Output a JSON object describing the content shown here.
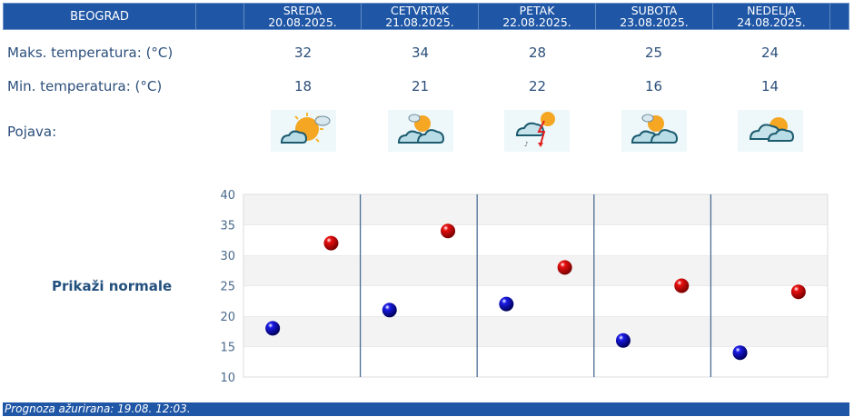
{
  "header": {
    "city": "BEOGRAD",
    "days": [
      {
        "name": "SREDA",
        "date": "20.08.2025."
      },
      {
        "name": "CETVRTAK",
        "date": "21.08.2025."
      },
      {
        "name": "PETAK",
        "date": "22.08.2025."
      },
      {
        "name": "SUBOTA",
        "date": "23.08.2025."
      },
      {
        "name": "NEDELJA",
        "date": "24.08.2025."
      }
    ]
  },
  "rows": {
    "max_label": "Maks. temperatura: (°C)",
    "min_label": "Min. temperatura: (°C)",
    "phenomena_label": "Pojava:",
    "max": [
      "32",
      "34",
      "28",
      "25",
      "24"
    ],
    "min": [
      "18",
      "21",
      "22",
      "16",
      "14"
    ],
    "icons": [
      "sun-cloud-icon",
      "partly-cloudy-icon",
      "thunderstorm-icon",
      "partly-cloudy-icon",
      "cloudy-sun-icon"
    ]
  },
  "normals_link": "Prikaži normale",
  "footer": {
    "text": "Prognoza ažurirana:  19.08. 12:03."
  },
  "colors": {
    "header_bg": "#1f56a5",
    "max_point": "#cc0000",
    "min_point": "#0000bb",
    "text": "#2c4f7c"
  },
  "chart_data": {
    "type": "scatter",
    "categories": [
      "SREDA",
      "CETVRTAK",
      "PETAK",
      "SUBOTA",
      "NEDELJA"
    ],
    "series": [
      {
        "name": "Min",
        "color": "#0000bb",
        "values": [
          18,
          21,
          22,
          16,
          14
        ]
      },
      {
        "name": "Max",
        "color": "#cc0000",
        "values": [
          32,
          34,
          28,
          25,
          24
        ]
      }
    ],
    "yticks": [
      10,
      15,
      20,
      25,
      30,
      35,
      40
    ],
    "ylim": [
      10,
      40
    ],
    "grid": true,
    "title": "",
    "xlabel": "",
    "ylabel": ""
  }
}
